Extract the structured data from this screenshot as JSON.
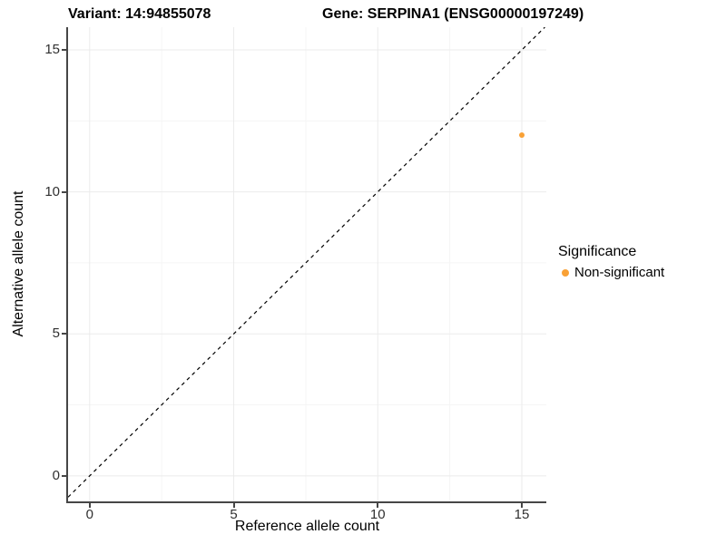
{
  "chart_data": {
    "type": "scatter",
    "titles": {
      "left": "Variant: 14:94855078",
      "right": "Gene: SERPINA1 (ENSG00000197249)"
    },
    "xlabel": "Reference allele count",
    "ylabel": "Alternative allele count",
    "xlim": [
      -0.75,
      15.85
    ],
    "ylim": [
      -0.9,
      15.8
    ],
    "xticks": [
      0,
      5,
      10,
      15
    ],
    "yticks": [
      0,
      5,
      10,
      15
    ],
    "minor_xticks": [
      2.5,
      7.5,
      12.5
    ],
    "minor_yticks": [
      2.5,
      7.5,
      12.5
    ],
    "grid": "on",
    "reference_line": {
      "type": "identity-y-equals-x",
      "style": "dashed",
      "color": "#000000"
    },
    "series": [
      {
        "name": "Non-significant",
        "color": "#F9A136",
        "points": [
          {
            "x": 15,
            "y": 12
          }
        ]
      }
    ],
    "legend": {
      "title": "Significance",
      "position": "right",
      "items": [
        {
          "label": "Non-significant",
          "color": "#F9A136"
        }
      ]
    }
  },
  "style": {
    "panel_background": "#FFFFFF",
    "axis_line_color": "#464646",
    "major_grid_color": "#EBEBEB",
    "minor_grid_color": "#F5F5F5",
    "tick_label_color": "#303030",
    "point_radius": 3
  }
}
